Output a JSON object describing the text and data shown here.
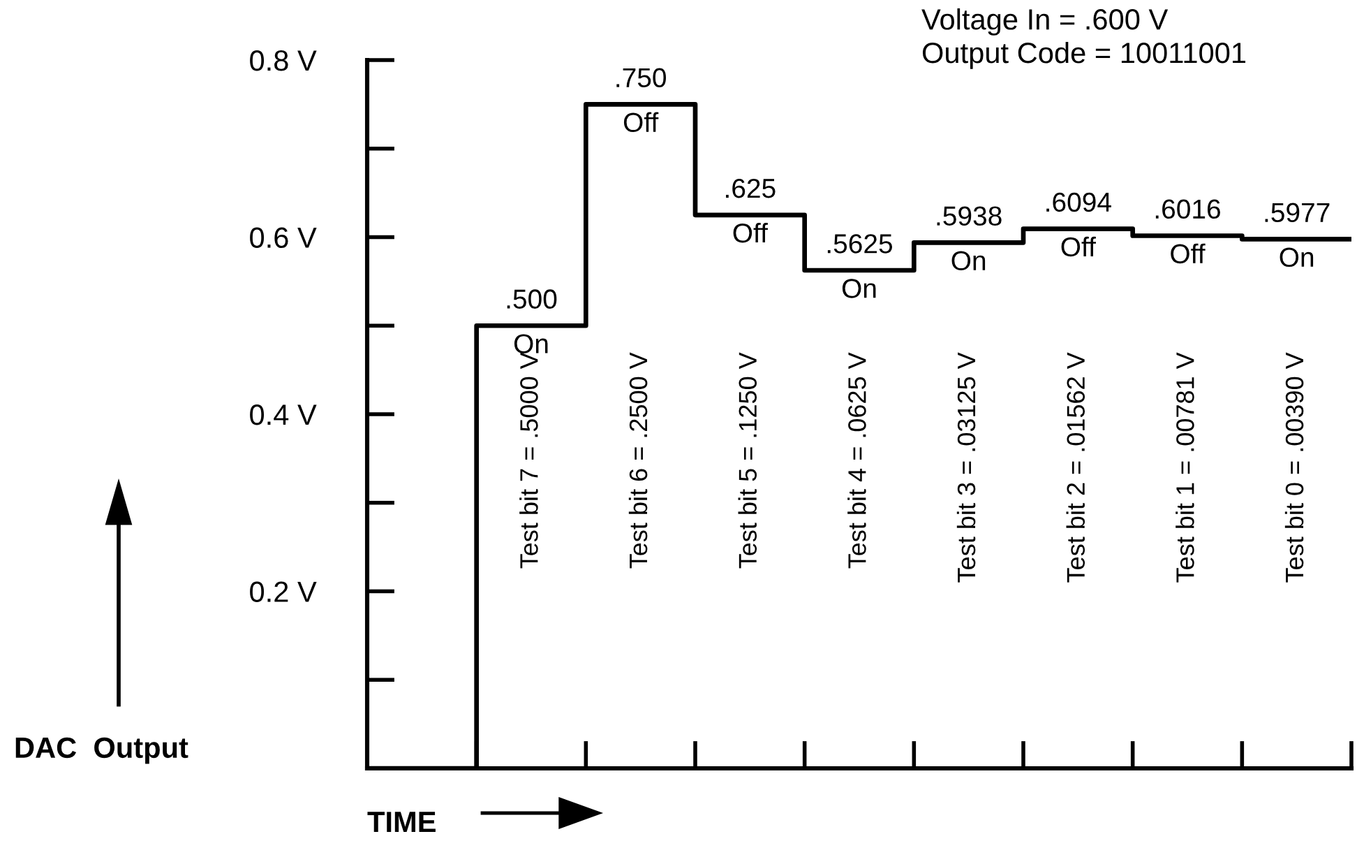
{
  "chart_data": {
    "type": "step",
    "xlabel": "TIME",
    "ylabel": "DAC  Output",
    "categories": [
      null,
      null,
      null,
      null,
      null,
      null,
      null,
      null,
      null,
      null
    ],
    "values": [
      0,
      0.5,
      0.75,
      0.625,
      0.5625,
      0.5938,
      0.6094,
      0.6016,
      0.5977,
      0.5977
    ],
    "value_labels": [
      null,
      ".500",
      ".750",
      ".625",
      ".5625",
      ".5938",
      ".6094",
      ".6016",
      ".5977",
      null
    ],
    "color": "#000000",
    "ylim": [
      0,
      0.8
    ],
    "yticks": [
      {
        "value": 0.2,
        "label": "0.2 V"
      },
      {
        "value": 0.4,
        "label": "0.4 V"
      },
      {
        "value": 0.6,
        "label": "0.6 V"
      },
      {
        "value": 0.8,
        "label": "0.8 V"
      }
    ],
    "tick_labels": "y",
    "grid": false,
    "legend": false,
    "annotations": [
      "Voltage In = .600 V",
      "Output Code = 10011001",
      "On",
      "Off",
      "Off",
      "On",
      "On",
      "Off",
      "Off",
      "On",
      "Test bit 7 = .5000 V",
      "Test bit 6 = .2500 V",
      "Test bit 5 = .1250 V",
      "Test bit 4 = .0625 V",
      "Test bit 3 = .03125 V",
      "Test bit 2 = .01562 V",
      "Test bit 1 = .00781 V",
      "Test bit 0 = .00390 V"
    ]
  }
}
